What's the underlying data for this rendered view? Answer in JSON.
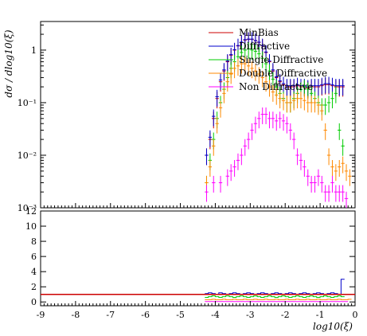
{
  "chart_data": {
    "type": "scatter",
    "xlabel": "log10(ξ)",
    "ylabel": "dσ / dlog10(ξ)",
    "xlim": [
      -9,
      0
    ],
    "main_ylim": [
      0.001,
      3.5
    ],
    "main_yscale": "log",
    "ratio_ylim": [
      -0.5,
      12
    ],
    "x_ticks": [
      -9,
      -8,
      -7,
      -6,
      -5,
      -4,
      -3,
      -2,
      -1,
      0
    ],
    "main_y_ticks": [
      {
        "value": 1,
        "label": "1"
      },
      {
        "value": 0.1,
        "label": "10⁻¹"
      },
      {
        "value": 0.01,
        "label": "10⁻²"
      },
      {
        "value": 0.001,
        "label": "10⁻³"
      }
    ],
    "ratio_y_ticks": [
      0,
      2,
      4,
      6,
      8,
      10,
      12
    ],
    "legend_position": "top-right",
    "series": [
      {
        "name": "MinBias",
        "color": "#cc0000",
        "x": [
          -4.25,
          -4.15,
          -4.05,
          -3.95,
          -3.85,
          -3.75,
          -3.65,
          -3.55,
          -3.45,
          -3.35,
          -3.25,
          -3.15,
          -3.05,
          -2.95,
          -2.85,
          -2.75,
          -2.65,
          -2.55,
          -2.45,
          -2.35,
          -2.25,
          -2.15,
          -2.05,
          -1.95,
          -1.85,
          -1.75,
          -1.65,
          -1.55,
          -1.45,
          -1.35,
          -1.25,
          -1.15,
          -1.05,
          -0.95,
          -0.85,
          -0.75,
          -0.65,
          -0.55,
          -0.45,
          -0.35
        ],
        "y": [
          0.01,
          0.02,
          0.05,
          0.12,
          0.25,
          0.4,
          0.6,
          0.8,
          1.0,
          1.2,
          1.4,
          1.55,
          1.6,
          1.6,
          1.5,
          1.4,
          1.2,
          0.9,
          0.6,
          0.4,
          0.3,
          0.25,
          0.22,
          0.2,
          0.2,
          0.2,
          0.21,
          0.2,
          0.2,
          0.19,
          0.2,
          0.2,
          0.2,
          0.21,
          0.22,
          0.22,
          0.21,
          0.2,
          0.2,
          0.2
        ],
        "ratio": [
          1,
          1,
          1,
          1,
          1,
          1,
          1,
          1,
          1,
          1,
          1,
          1,
          1,
          1,
          1,
          1,
          1,
          1,
          1,
          1,
          1,
          1,
          1,
          1,
          1,
          1,
          1,
          1,
          1,
          1,
          1,
          1,
          1,
          1,
          1,
          1,
          1,
          1,
          1,
          1
        ]
      },
      {
        "name": "Diffractive",
        "color": "#0000cc",
        "x": [
          -4.25,
          -4.15,
          -4.05,
          -3.95,
          -3.85,
          -3.75,
          -3.65,
          -3.55,
          -3.45,
          -3.35,
          -3.25,
          -3.15,
          -3.05,
          -2.95,
          -2.85,
          -2.75,
          -2.65,
          -2.55,
          -2.45,
          -2.35,
          -2.25,
          -2.15,
          -2.05,
          -1.95,
          -1.85,
          -1.75,
          -1.65,
          -1.55,
          -1.45,
          -1.35,
          -1.25,
          -1.15,
          -1.05,
          -0.95,
          -0.85,
          -0.75,
          -0.65,
          -0.55,
          -0.45,
          -0.35
        ],
        "y": [
          0.01,
          0.022,
          0.055,
          0.13,
          0.27,
          0.42,
          0.62,
          0.82,
          1.02,
          1.22,
          1.42,
          1.58,
          1.62,
          1.62,
          1.52,
          1.42,
          1.22,
          0.92,
          0.62,
          0.42,
          0.31,
          0.26,
          0.23,
          0.21,
          0.21,
          0.21,
          0.22,
          0.21,
          0.21,
          0.2,
          0.21,
          0.21,
          0.21,
          0.22,
          0.23,
          0.23,
          0.22,
          0.21,
          0.21,
          0.21
        ],
        "ratio": [
          1.1,
          1.2,
          1.1,
          1.0,
          1.2,
          1.1,
          1.0,
          1.1,
          1.2,
          1.1,
          1.0,
          1.1,
          1.2,
          1.1,
          1.0,
          1.1,
          1.2,
          1.1,
          1.0,
          1.1,
          1.2,
          1.1,
          1.0,
          1.1,
          1.2,
          1.1,
          1.0,
          1.1,
          1.2,
          1.1,
          1.0,
          1.1,
          1.2,
          1.1,
          1.0,
          1.1,
          1.2,
          1.1,
          1.0,
          3.0
        ]
      },
      {
        "name": "Single Diffractive",
        "color": "#00cc00",
        "x": [
          -4.25,
          -4.15,
          -4.05,
          -3.95,
          -3.85,
          -3.75,
          -3.65,
          -3.55,
          -3.45,
          -3.35,
          -3.25,
          -3.15,
          -3.05,
          -2.95,
          -2.85,
          -2.75,
          -2.65,
          -2.55,
          -2.45,
          -2.35,
          -2.25,
          -2.15,
          -2.05,
          -1.95,
          -1.85,
          -1.75,
          -1.65,
          -1.55,
          -1.45,
          -1.35,
          -1.25,
          -1.15,
          -1.05,
          -0.95,
          -0.85,
          -0.75,
          -0.65,
          -0.55,
          -0.45,
          -0.35
        ],
        "y": [
          0.003,
          0.008,
          0.02,
          0.05,
          0.1,
          0.18,
          0.3,
          0.45,
          0.6,
          0.75,
          0.9,
          1.0,
          1.05,
          1.0,
          0.95,
          0.85,
          0.7,
          0.55,
          0.4,
          0.28,
          0.2,
          0.15,
          0.12,
          0.1,
          0.1,
          0.12,
          0.15,
          0.18,
          0.2,
          0.18,
          0.15,
          0.12,
          0.1,
          0.09,
          0.09,
          0.1,
          0.12,
          0.15,
          0.03,
          0.015
        ],
        "ratio": [
          0.6,
          0.7,
          0.8,
          0.7,
          0.6,
          0.7,
          0.8,
          0.7,
          0.6,
          0.7,
          0.8,
          0.7,
          0.6,
          0.7,
          0.8,
          0.7,
          0.6,
          0.7,
          0.8,
          0.7,
          0.6,
          0.7,
          0.8,
          0.7,
          0.6,
          0.7,
          0.8,
          0.7,
          0.6,
          0.7,
          0.8,
          0.7,
          0.6,
          0.7,
          0.8,
          0.7,
          0.6,
          0.7,
          0.8,
          0.7
        ]
      },
      {
        "name": "Double Diffractive",
        "color": "#ff8800",
        "x": [
          -4.25,
          -4.15,
          -4.05,
          -3.95,
          -3.85,
          -3.75,
          -3.65,
          -3.55,
          -3.45,
          -3.35,
          -3.25,
          -3.15,
          -3.05,
          -2.95,
          -2.85,
          -2.75,
          -2.65,
          -2.55,
          -2.45,
          -2.35,
          -2.25,
          -2.15,
          -2.05,
          -1.95,
          -1.85,
          -1.75,
          -1.65,
          -1.55,
          -1.45,
          -1.35,
          -1.25,
          -1.15,
          -1.05,
          -0.95,
          -0.85,
          -0.75,
          -0.65,
          -0.55,
          -0.45,
          -0.35,
          -0.25,
          -0.15
        ],
        "y": [
          0.003,
          0.006,
          0.015,
          0.04,
          0.08,
          0.15,
          0.25,
          0.35,
          0.45,
          0.5,
          0.55,
          0.55,
          0.5,
          0.45,
          0.4,
          0.35,
          0.3,
          0.25,
          0.2,
          0.16,
          0.14,
          0.12,
          0.11,
          0.1,
          0.1,
          0.11,
          0.12,
          0.12,
          0.11,
          0.1,
          0.1,
          0.1,
          0.09,
          0.07,
          0.03,
          0.01,
          0.006,
          0.005,
          0.006,
          0.007,
          0.005,
          0.004
        ],
        "ratio": [
          0.3,
          0.3,
          0.35,
          0.3,
          0.3,
          0.35,
          0.3,
          0.3,
          0.35,
          0.3,
          0.3,
          0.35,
          0.3,
          0.3,
          0.35,
          0.3,
          0.3,
          0.35,
          0.3,
          0.3,
          0.35,
          0.3,
          0.3,
          0.35,
          0.3,
          0.3,
          0.35,
          0.3,
          0.3,
          0.35,
          0.3,
          0.3,
          0.35,
          0.3,
          0.3,
          0.35,
          0.3,
          0.3,
          0.35,
          0.3,
          0.3,
          0.35
        ]
      },
      {
        "name": "Non Diffractive",
        "color": "#ff00ff",
        "x": [
          -4.25,
          -4.05,
          -3.85,
          -3.65,
          -3.55,
          -3.45,
          -3.35,
          -3.25,
          -3.15,
          -3.05,
          -2.95,
          -2.85,
          -2.75,
          -2.65,
          -2.55,
          -2.45,
          -2.35,
          -2.25,
          -2.15,
          -2.05,
          -1.95,
          -1.85,
          -1.75,
          -1.65,
          -1.55,
          -1.45,
          -1.35,
          -1.25,
          -1.15,
          -1.05,
          -0.95,
          -0.85,
          -0.75,
          -0.65,
          -0.55,
          -0.45,
          -0.35,
          -0.25
        ],
        "y": [
          0.002,
          0.003,
          0.003,
          0.004,
          0.005,
          0.006,
          0.008,
          0.01,
          0.015,
          0.02,
          0.03,
          0.04,
          0.05,
          0.06,
          0.06,
          0.05,
          0.05,
          0.045,
          0.05,
          0.045,
          0.04,
          0.03,
          0.02,
          0.01,
          0.008,
          0.006,
          0.004,
          0.003,
          0.003,
          0.004,
          0.003,
          0.002,
          0.002,
          0.003,
          0.002,
          0.002,
          0.002,
          0.0015
        ],
        "ratio": [
          0.05,
          0.05,
          0.05,
          0.05,
          0.05,
          0.05,
          0.05,
          0.05,
          0.05,
          0.05,
          0.05,
          0.05,
          0.05,
          0.05,
          0.05,
          0.05,
          0.05,
          0.05,
          0.05,
          0.05,
          0.05,
          0.05,
          0.05,
          0.05,
          0.05,
          0.05,
          0.05,
          0.05,
          0.05,
          0.05,
          0.05,
          0.05,
          0.05,
          0.05,
          0.05,
          0.05,
          0.05,
          0.05
        ]
      }
    ]
  }
}
